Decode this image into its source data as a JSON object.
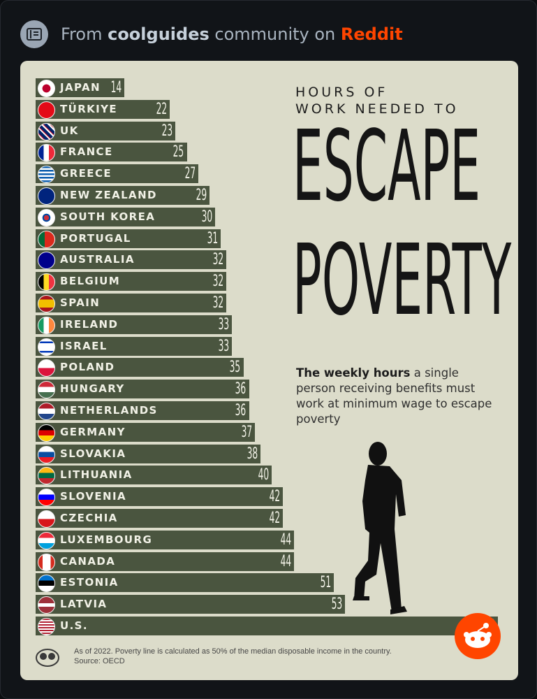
{
  "header": {
    "prefix": "From ",
    "community": "coolguides",
    "middle": " community on ",
    "brand": "Reddit",
    "icon": "guide-icon"
  },
  "infographic": {
    "title_small_line1": "HOURS OF",
    "title_small_line2": "WORK NEEDED TO",
    "title_big_line1": "ESCAPE",
    "title_big_line2": "POVERTY",
    "subtitle_bold": "The weekly hours",
    "subtitle_rest": " a single person receiving benefits must work at minimum wage to escape poverty",
    "footnote_line1": "As of 2022. Poverty line is calculated as 50% of the median disposable income in the country.",
    "footnote_line2": "Source: OECD",
    "bar_color": "#4a553f",
    "background_color": "#dcdcca"
  },
  "chart_data": {
    "type": "bar",
    "orientation": "horizontal",
    "title": "HOURS OF WORK NEEDED TO ESCAPE POVERTY",
    "subtitle": "The weekly hours a single person receiving benefits must work at minimum wage to escape poverty",
    "categories": [
      "JAPAN",
      "TÜRKIYE",
      "UK",
      "FRANCE",
      "GREECE",
      "NEW ZEALAND",
      "SOUTH KOREA",
      "PORTUGAL",
      "AUSTRALIA",
      "BELGIUM",
      "SPAIN",
      "IRELAND",
      "ISRAEL",
      "POLAND",
      "HUNGARY",
      "NETHERLANDS",
      "GERMANY",
      "SLOVAKIA",
      "LITHUANIA",
      "SLOVENIA",
      "CZECHIA",
      "LUXEMBOURG",
      "CANADA",
      "ESTONIA",
      "LATVIA",
      "U.S."
    ],
    "values": [
      14,
      22,
      23,
      25,
      27,
      29,
      30,
      31,
      32,
      32,
      32,
      33,
      33,
      35,
      36,
      36,
      37,
      38,
      40,
      42,
      42,
      44,
      44,
      51,
      53,
      80
    ],
    "value_labels": [
      "14",
      "22",
      "23",
      "25",
      "27",
      "29",
      "30",
      "31",
      "32",
      "32",
      "32",
      "33",
      "33",
      "35",
      "36",
      "36",
      "37",
      "38",
      "40",
      "42",
      "42",
      "44",
      "44",
      "51",
      "53",
      "80"
    ],
    "flags": [
      "japan-flag-icon",
      "turkey-flag-icon",
      "uk-flag-icon",
      "france-flag-icon",
      "greece-flag-icon",
      "new-zealand-flag-icon",
      "south-korea-flag-icon",
      "portugal-flag-icon",
      "australia-flag-icon",
      "belgium-flag-icon",
      "spain-flag-icon",
      "ireland-flag-icon",
      "israel-flag-icon",
      "poland-flag-icon",
      "hungary-flag-icon",
      "netherlands-flag-icon",
      "germany-flag-icon",
      "slovakia-flag-icon",
      "lithuania-flag-icon",
      "slovenia-flag-icon",
      "czechia-flag-icon",
      "luxembourg-flag-icon",
      "canada-flag-icon",
      "estonia-flag-icon",
      "latvia-flag-icon",
      "us-flag-icon"
    ],
    "xlim": [
      0,
      80
    ],
    "grid": false
  }
}
